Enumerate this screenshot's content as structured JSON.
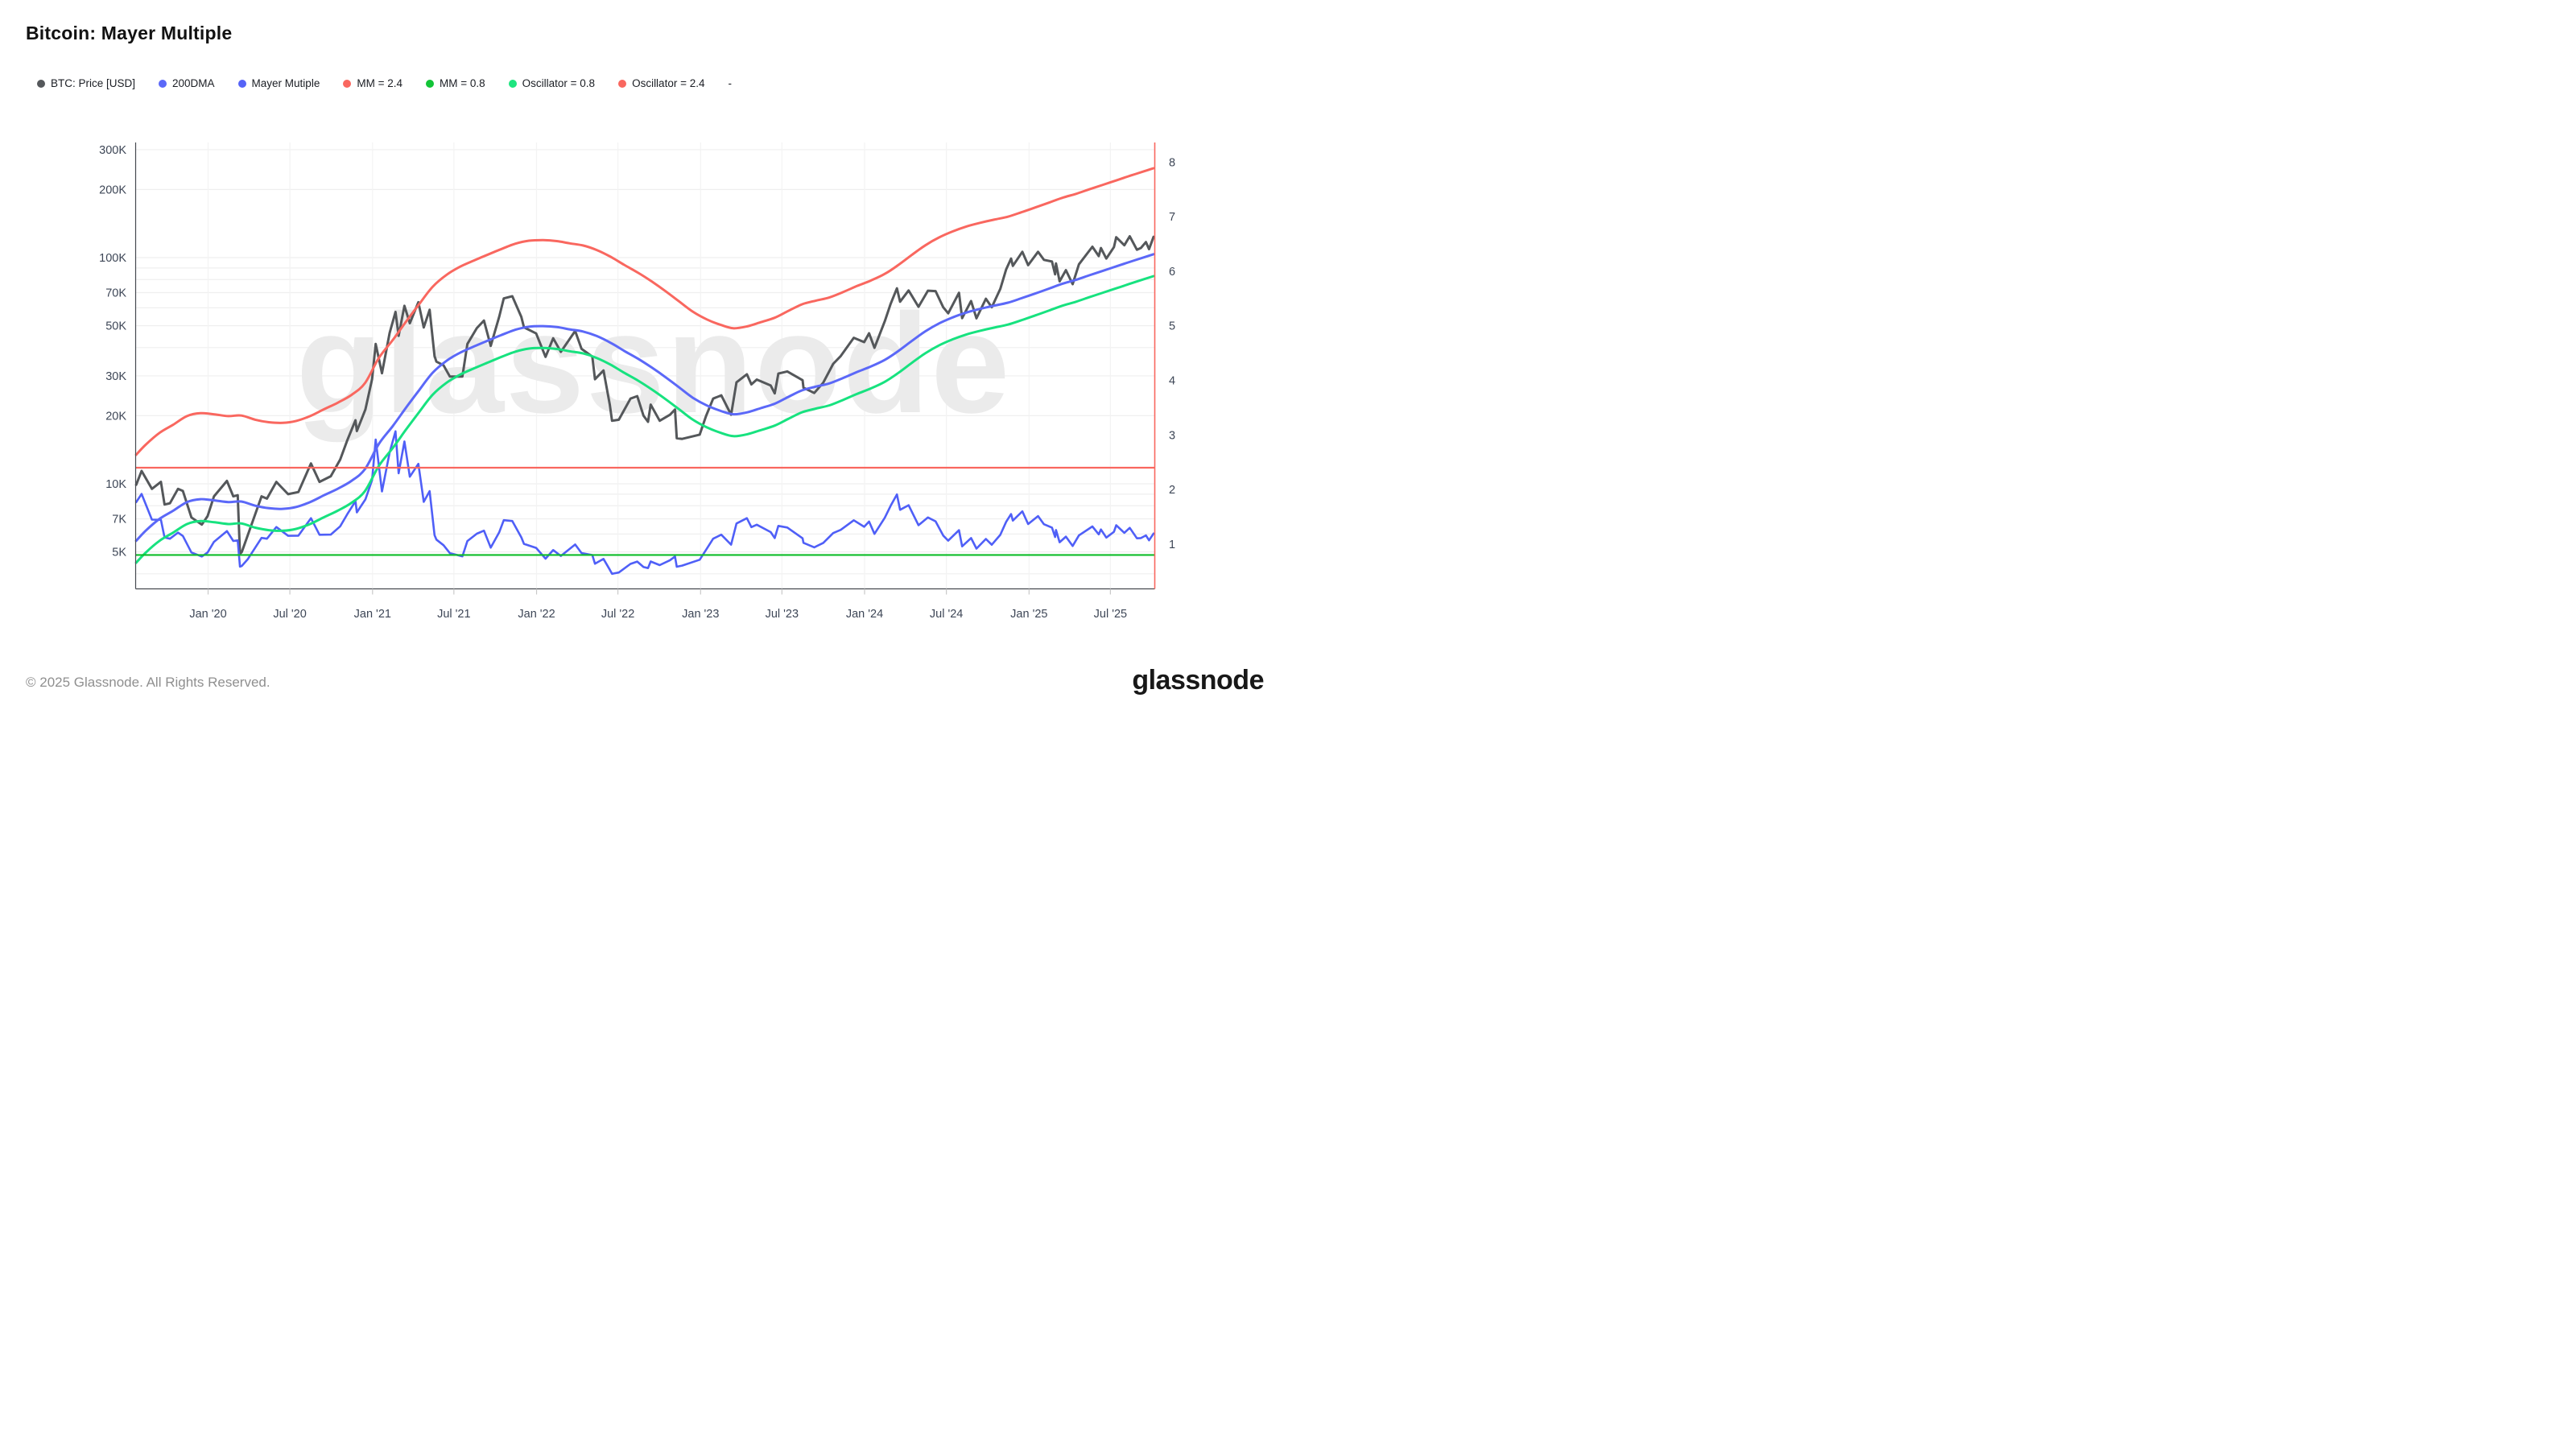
{
  "header": {
    "title": "Bitcoin: Mayer Multiple"
  },
  "legend": {
    "items": [
      {
        "label": "BTC: Price [USD]",
        "color": "#55585b"
      },
      {
        "label": "200DMA",
        "color": "#5b68f8"
      },
      {
        "label": "Mayer Mutiple",
        "color": "#5563f7"
      },
      {
        "label": "MM = 2.4",
        "color": "#f9675f"
      },
      {
        "label": "MM = 0.8",
        "color": "#12c437"
      },
      {
        "label": "Oscillator = 0.8",
        "color": "#1ee57f"
      },
      {
        "label": "Oscillator = 2.4",
        "color": "#f9675f"
      }
    ],
    "trailing_dash": "-"
  },
  "watermark": "glassnode",
  "footer": {
    "copyright": "© 2025 Glassnode. All Rights Reserved.",
    "brand": "glassnode"
  },
  "chart_data": {
    "type": "line",
    "title": "Bitcoin: Mayer Multiple",
    "x_range": [
      "2019-07-25",
      "2025-10-07"
    ],
    "x_tick_labels": [
      "Jan '20",
      "Jul '20",
      "Jan '21",
      "Jul '21",
      "Jan '22",
      "Jul '22",
      "Jan '23",
      "Jul '23",
      "Jan '24",
      "Jul '24",
      "Jan '25",
      "Jul '25"
    ],
    "x_tick_dates": [
      "2020-01-01",
      "2020-07-01",
      "2021-01-01",
      "2021-07-01",
      "2022-01-01",
      "2022-07-01",
      "2023-01-01",
      "2023-07-01",
      "2024-01-01",
      "2024-07-01",
      "2025-01-01",
      "2025-07-01"
    ],
    "left_axis": {
      "scale": "log",
      "unit": "USD",
      "tick_labels": [
        "300K",
        "200K",
        "100K",
        "70K",
        "50K",
        "30K",
        "20K",
        "10K",
        "7K",
        "5K"
      ],
      "tick_values_k": [
        300,
        200,
        100,
        70,
        50,
        30,
        20,
        10,
        7,
        5
      ],
      "grid_values_k": [
        300,
        200,
        100,
        90,
        80,
        70,
        60,
        50,
        40,
        30,
        20,
        10,
        9,
        8,
        7,
        6,
        5,
        4
      ]
    },
    "right_axis": {
      "scale": "linear",
      "ticks": [
        8,
        7,
        6,
        5,
        4,
        3,
        2,
        1
      ],
      "range": [
        0.18,
        8.35
      ]
    },
    "grid": true,
    "legend_position": "top",
    "series": [
      {
        "name": "BTC: Price [USD]",
        "axis": "price",
        "style": "noisy",
        "color": "#54575a",
        "width": 3,
        "data_k_usd": [
          [
            "2019-07-25",
            9.9
          ],
          [
            "2019-08-06",
            11.4
          ],
          [
            "2019-08-29",
            9.5
          ],
          [
            "2019-09-18",
            10.2
          ],
          [
            "2019-09-26",
            8.1
          ],
          [
            "2019-10-08",
            8.2
          ],
          [
            "2019-10-26",
            9.5
          ],
          [
            "2019-11-06",
            9.3
          ],
          [
            "2019-11-25",
            7.1
          ],
          [
            "2019-12-18",
            6.6
          ],
          [
            "2019-12-31",
            7.2
          ],
          [
            "2020-01-14",
            8.8
          ],
          [
            "2020-02-12",
            10.3
          ],
          [
            "2020-02-26",
            8.8
          ],
          [
            "2020-03-07",
            8.9
          ],
          [
            "2020-03-12",
            4.9
          ],
          [
            "2020-03-16",
            5.0
          ],
          [
            "2020-03-29",
            5.9
          ],
          [
            "2020-04-29",
            8.8
          ],
          [
            "2020-05-11",
            8.6
          ],
          [
            "2020-06-01",
            10.2
          ],
          [
            "2020-06-27",
            9.0
          ],
          [
            "2020-07-20",
            9.2
          ],
          [
            "2020-08-17",
            12.3
          ],
          [
            "2020-09-05",
            10.2
          ],
          [
            "2020-09-30",
            10.8
          ],
          [
            "2020-10-21",
            12.8
          ],
          [
            "2020-11-06",
            15.6
          ],
          [
            "2020-11-24",
            19.1
          ],
          [
            "2020-11-27",
            17.1
          ],
          [
            "2020-12-16",
            21.3
          ],
          [
            "2020-12-31",
            29.0
          ],
          [
            "2021-01-08",
            41.5
          ],
          [
            "2021-01-22",
            30.8
          ],
          [
            "2021-02-08",
            46.4
          ],
          [
            "2021-02-21",
            57.5
          ],
          [
            "2021-02-28",
            45.1
          ],
          [
            "2021-03-13",
            61.2
          ],
          [
            "2021-03-25",
            51.3
          ],
          [
            "2021-04-13",
            63.5
          ],
          [
            "2021-04-25",
            49.1
          ],
          [
            "2021-05-08",
            58.8
          ],
          [
            "2021-05-19",
            36.7
          ],
          [
            "2021-05-23",
            34.7
          ],
          [
            "2021-06-08",
            33.4
          ],
          [
            "2021-06-22",
            29.8
          ],
          [
            "2021-07-20",
            29.8
          ],
          [
            "2021-07-31",
            41.5
          ],
          [
            "2021-08-21",
            48.8
          ],
          [
            "2021-09-06",
            52.7
          ],
          [
            "2021-09-21",
            40.7
          ],
          [
            "2021-10-10",
            54.9
          ],
          [
            "2021-10-20",
            66.0
          ],
          [
            "2021-11-08",
            67.5
          ],
          [
            "2021-11-28",
            54.7
          ],
          [
            "2021-12-04",
            49.2
          ],
          [
            "2021-12-31",
            46.2
          ],
          [
            "2022-01-21",
            36.4
          ],
          [
            "2022-02-07",
            44.0
          ],
          [
            "2022-02-24",
            38.3
          ],
          [
            "2022-03-28",
            47.4
          ],
          [
            "2022-04-11",
            39.5
          ],
          [
            "2022-05-05",
            36.5
          ],
          [
            "2022-05-11",
            29.0
          ],
          [
            "2022-05-30",
            31.7
          ],
          [
            "2022-06-13",
            22.4
          ],
          [
            "2022-06-18",
            19.0
          ],
          [
            "2022-07-03",
            19.2
          ],
          [
            "2022-07-29",
            23.8
          ],
          [
            "2022-08-13",
            24.4
          ],
          [
            "2022-08-27",
            20.0
          ],
          [
            "2022-09-06",
            18.8
          ],
          [
            "2022-09-12",
            22.4
          ],
          [
            "2022-10-02",
            19.0
          ],
          [
            "2022-10-25",
            20.2
          ],
          [
            "2022-11-05",
            21.3
          ],
          [
            "2022-11-09",
            15.9
          ],
          [
            "2022-11-21",
            15.8
          ],
          [
            "2022-12-30",
            16.5
          ],
          [
            "2023-01-13",
            19.9
          ],
          [
            "2023-01-29",
            23.8
          ],
          [
            "2023-02-16",
            24.6
          ],
          [
            "2023-03-10",
            20.2
          ],
          [
            "2023-03-22",
            28.1
          ],
          [
            "2023-04-14",
            30.5
          ],
          [
            "2023-04-24",
            27.5
          ],
          [
            "2023-05-06",
            28.9
          ],
          [
            "2023-06-06",
            27.2
          ],
          [
            "2023-06-15",
            25.1
          ],
          [
            "2023-06-23",
            30.7
          ],
          [
            "2023-07-13",
            31.4
          ],
          [
            "2023-08-16",
            28.7
          ],
          [
            "2023-08-18",
            26.6
          ],
          [
            "2023-09-11",
            25.2
          ],
          [
            "2023-10-01",
            28.0
          ],
          [
            "2023-10-23",
            33.9
          ],
          [
            "2023-11-09",
            36.7
          ],
          [
            "2023-12-08",
            44.2
          ],
          [
            "2023-12-31",
            42.3
          ],
          [
            "2024-01-11",
            46.3
          ],
          [
            "2024-01-23",
            39.9
          ],
          [
            "2024-02-15",
            52.3
          ],
          [
            "2024-02-28",
            62.5
          ],
          [
            "2024-03-13",
            73.1
          ],
          [
            "2024-03-20",
            63.8
          ],
          [
            "2024-04-08",
            71.6
          ],
          [
            "2024-04-30",
            60.6
          ],
          [
            "2024-05-21",
            71.4
          ],
          [
            "2024-06-07",
            71.1
          ],
          [
            "2024-06-24",
            60.3
          ],
          [
            "2024-07-05",
            56.7
          ],
          [
            "2024-07-29",
            69.9
          ],
          [
            "2024-08-05",
            54.0
          ],
          [
            "2024-08-25",
            64.3
          ],
          [
            "2024-09-06",
            53.9
          ],
          [
            "2024-09-27",
            65.8
          ],
          [
            "2024-10-10",
            60.3
          ],
          [
            "2024-10-29",
            72.7
          ],
          [
            "2024-11-11",
            88.7
          ],
          [
            "2024-11-22",
            99.0
          ],
          [
            "2024-11-26",
            91.9
          ],
          [
            "2024-12-17",
            106.1
          ],
          [
            "2024-12-30",
            92.6
          ],
          [
            "2025-01-21",
            106.1
          ],
          [
            "2025-02-03",
            97.7
          ],
          [
            "2025-02-21",
            96.1
          ],
          [
            "2025-02-28",
            84.3
          ],
          [
            "2025-03-02",
            94.2
          ],
          [
            "2025-03-10",
            78.5
          ],
          [
            "2025-03-24",
            88.0
          ],
          [
            "2025-04-08",
            76.3
          ],
          [
            "2025-04-22",
            93.4
          ],
          [
            "2025-05-22",
            111.7
          ],
          [
            "2025-06-05",
            101.6
          ],
          [
            "2025-06-10",
            110.2
          ],
          [
            "2025-06-22",
            99.0
          ],
          [
            "2025-07-09",
            111.3
          ],
          [
            "2025-07-14",
            123.0
          ],
          [
            "2025-08-01",
            113.4
          ],
          [
            "2025-08-13",
            124.3
          ],
          [
            "2025-08-29",
            108.4
          ],
          [
            "2025-09-07",
            110.3
          ],
          [
            "2025-09-18",
            117.1
          ],
          [
            "2025-09-25",
            109.0
          ],
          [
            "2025-10-05",
            123.5
          ]
        ]
      },
      {
        "name": "200DMA",
        "axis": "price",
        "style": "smooth",
        "color": "#5b68f8",
        "width": 3,
        "data_k_usd": [
          [
            "2019-07-25",
            5.6
          ],
          [
            "2019-08-15",
            6.2
          ],
          [
            "2019-09-15",
            7.0
          ],
          [
            "2019-10-15",
            7.6
          ],
          [
            "2019-11-15",
            8.3
          ],
          [
            "2019-12-15",
            8.55
          ],
          [
            "2020-01-15",
            8.45
          ],
          [
            "2020-02-15",
            8.3
          ],
          [
            "2020-03-15",
            8.35
          ],
          [
            "2020-04-15",
            8.0
          ],
          [
            "2020-05-15",
            7.8
          ],
          [
            "2020-06-15",
            7.75
          ],
          [
            "2020-07-15",
            7.9
          ],
          [
            "2020-08-15",
            8.3
          ],
          [
            "2020-09-15",
            8.9
          ],
          [
            "2020-10-15",
            9.5
          ],
          [
            "2020-11-15",
            10.3
          ],
          [
            "2020-12-15",
            11.6
          ],
          [
            "2021-01-15",
            15.0
          ],
          [
            "2021-02-15",
            18.0
          ],
          [
            "2021-03-15",
            21.5
          ],
          [
            "2021-04-15",
            26.0
          ],
          [
            "2021-05-15",
            31.0
          ],
          [
            "2021-06-15",
            35.0
          ],
          [
            "2021-07-15",
            38.0
          ],
          [
            "2021-08-15",
            40.5
          ],
          [
            "2021-09-15",
            43.0
          ],
          [
            "2021-10-15",
            45.5
          ],
          [
            "2021-11-15",
            48.0
          ],
          [
            "2021-12-15",
            49.5
          ],
          [
            "2022-01-15",
            49.8
          ],
          [
            "2022-02-15",
            49.3
          ],
          [
            "2022-03-15",
            48.2
          ],
          [
            "2022-04-15",
            47.1
          ],
          [
            "2022-05-15",
            45.0
          ],
          [
            "2022-06-15",
            42.0
          ],
          [
            "2022-07-15",
            38.7
          ],
          [
            "2022-08-15",
            35.7
          ],
          [
            "2022-09-15",
            32.6
          ],
          [
            "2022-10-15",
            29.6
          ],
          [
            "2022-11-15",
            26.6
          ],
          [
            "2022-12-15",
            24.0
          ],
          [
            "2023-01-15",
            22.2
          ],
          [
            "2023-02-15",
            21.0
          ],
          [
            "2023-03-15",
            20.3
          ],
          [
            "2023-04-15",
            20.7
          ],
          [
            "2023-05-15",
            21.6
          ],
          [
            "2023-06-15",
            22.6
          ],
          [
            "2023-07-15",
            24.2
          ],
          [
            "2023-08-15",
            25.9
          ],
          [
            "2023-09-15",
            26.9
          ],
          [
            "2023-10-15",
            27.8
          ],
          [
            "2023-11-15",
            29.4
          ],
          [
            "2023-12-15",
            31.2
          ],
          [
            "2024-01-15",
            33.0
          ],
          [
            "2024-02-15",
            35.3
          ],
          [
            "2024-03-15",
            38.5
          ],
          [
            "2024-04-15",
            42.8
          ],
          [
            "2024-05-15",
            47.2
          ],
          [
            "2024-06-15",
            51.2
          ],
          [
            "2024-07-15",
            54.4
          ],
          [
            "2024-08-15",
            57.2
          ],
          [
            "2024-09-15",
            59.4
          ],
          [
            "2024-10-15",
            61.3
          ],
          [
            "2024-11-15",
            63.2
          ],
          [
            "2024-12-15",
            66.1
          ],
          [
            "2025-01-15",
            69.4
          ],
          [
            "2025-02-15",
            73.0
          ],
          [
            "2025-03-15",
            76.5
          ],
          [
            "2025-04-15",
            79.7
          ],
          [
            "2025-05-15",
            83.5
          ],
          [
            "2025-06-15",
            87.5
          ],
          [
            "2025-07-15",
            91.6
          ],
          [
            "2025-08-15",
            96.0
          ],
          [
            "2025-09-15",
            100.5
          ],
          [
            "2025-10-05",
            103.5
          ]
        ]
      },
      {
        "name": "Mayer Mutiple",
        "axis": "oscillator",
        "style": "noisy",
        "color": "#4f5ff7",
        "width": 2.6,
        "derived": "BTC Price / 200DMA"
      },
      {
        "name": "MM = 2.4",
        "axis": "price",
        "style": "smooth",
        "color": "#f9675f",
        "width": 3,
        "derived": "200DMA * 2.4"
      },
      {
        "name": "MM = 0.8",
        "axis": "price",
        "style": "smooth",
        "color": "#17e27f",
        "width": 3,
        "derived": "200DMA * 0.8"
      },
      {
        "name": "Oscillator = 0.8",
        "axis": "oscillator",
        "style": "hline",
        "color": "#0dbd28",
        "width": 2.2,
        "value": 0.8
      },
      {
        "name": "Oscillator = 2.4",
        "axis": "oscillator",
        "style": "hline",
        "color": "#f9675f",
        "width": 2.2,
        "value": 2.4
      }
    ]
  }
}
